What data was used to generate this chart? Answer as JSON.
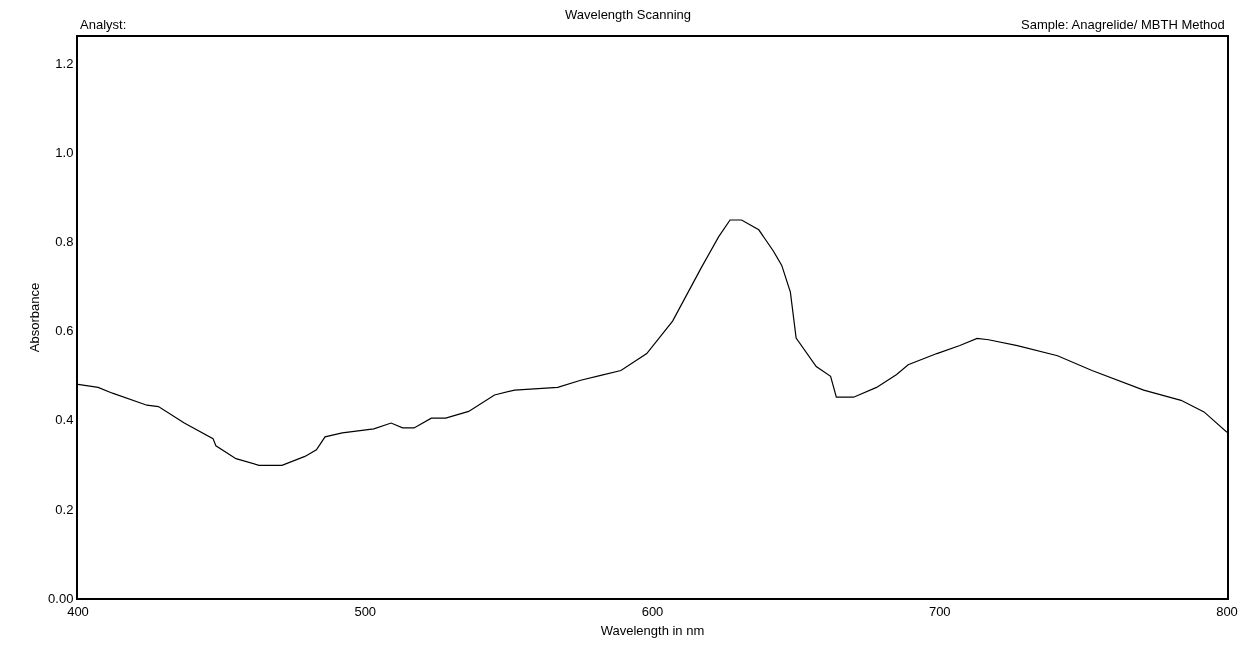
{
  "chart_data": {
    "type": "line",
    "title": "Wavelength Scanning",
    "xlabel": "Wavelength in nm",
    "ylabel": "Absorbance",
    "annotations": [
      "Analyst:",
      "Sample: Anagrelide/ MBTH Method"
    ],
    "x": [
      400,
      407,
      412,
      424,
      428,
      437,
      447,
      448,
      455,
      463,
      471,
      479,
      483,
      486,
      492,
      503,
      509,
      513,
      517,
      523,
      528,
      536,
      545,
      552,
      567,
      575,
      582,
      589,
      598,
      607,
      617,
      623,
      627,
      631,
      637,
      642,
      645,
      648,
      650,
      657,
      662,
      664,
      670,
      678,
      685,
      689,
      699,
      707,
      713,
      717,
      727,
      741,
      753,
      771,
      784,
      792,
      800
    ],
    "series": [
      {
        "color": "#000000",
        "values": [
          0.48,
          0.473,
          0.46,
          0.433,
          0.43,
          0.393,
          0.358,
          0.342,
          0.313,
          0.298,
          0.298,
          0.318,
          0.333,
          0.362,
          0.371,
          0.38,
          0.393,
          0.382,
          0.382,
          0.404,
          0.404,
          0.419,
          0.456,
          0.467,
          0.473,
          0.489,
          0.5,
          0.511,
          0.549,
          0.622,
          0.742,
          0.811,
          0.849,
          0.849,
          0.827,
          0.78,
          0.747,
          0.687,
          0.584,
          0.52,
          0.498,
          0.451,
          0.451,
          0.473,
          0.502,
          0.524,
          0.549,
          0.567,
          0.583,
          0.58,
          0.567,
          0.544,
          0.511,
          0.467,
          0.444,
          0.418,
          0.372
        ]
      }
    ],
    "xlim": [
      400,
      800
    ],
    "xticks": [
      400,
      500,
      600,
      700,
      800
    ],
    "ylim": [
      0,
      1.26
    ],
    "yticks": [
      {
        "value": 0,
        "label": "0.00"
      },
      0.2,
      0.4,
      0.6,
      0.8,
      {
        "value": 1,
        "label": "1.0"
      },
      1.2
    ],
    "marker": "none",
    "line_style": "solid"
  }
}
